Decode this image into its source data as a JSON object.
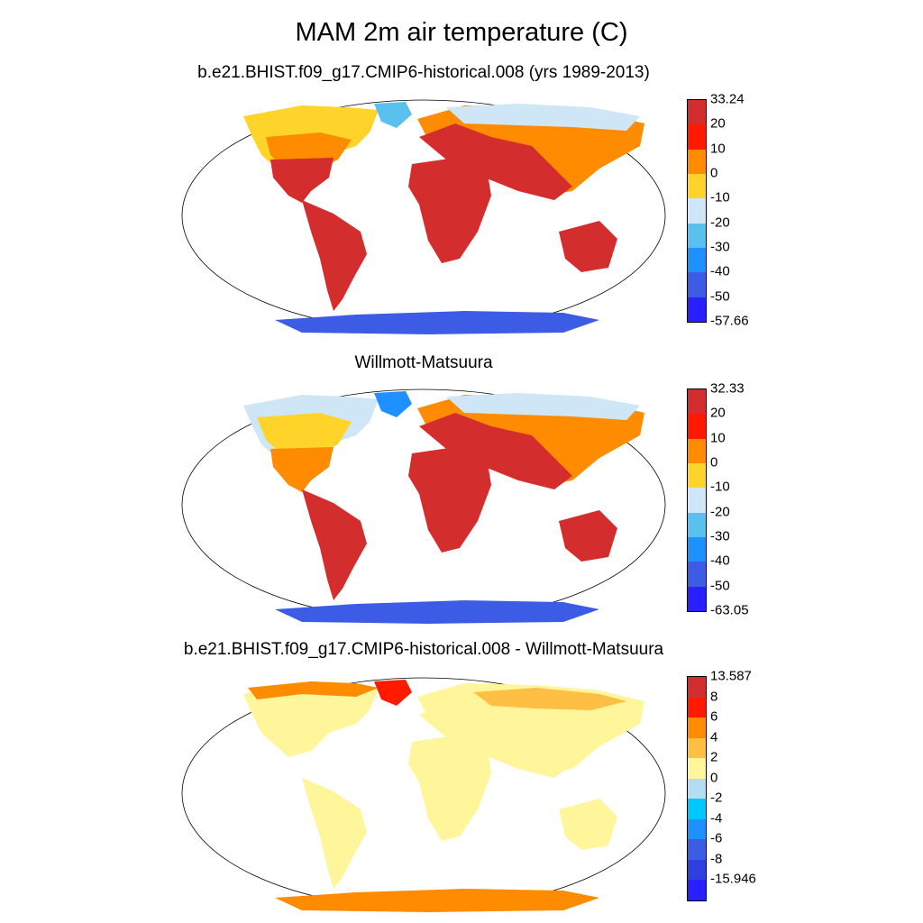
{
  "title": "MAM 2m air temperature (C)",
  "panels": [
    {
      "subtitle": "b.e21.BHIST.f09_g17.CMIP6-historical.008 (yrs 1989-2013)",
      "colorbar": {
        "labels": [
          "33.24",
          "20",
          "10",
          "0",
          "-10",
          "-20",
          "-30",
          "-40",
          "-50",
          "-57.66"
        ],
        "colors": [
          "#d42d2d",
          "#ff1a00",
          "#ff8c00",
          "#ffd42a",
          "#cfe6f6",
          "#5ac0ee",
          "#1e90ff",
          "#3d5ce6",
          "#2a1fff"
        ]
      }
    },
    {
      "subtitle": "Willmott-Matsuura",
      "colorbar": {
        "labels": [
          "32.33",
          "20",
          "10",
          "0",
          "-10",
          "-20",
          "-30",
          "-40",
          "-50",
          "-63.05"
        ],
        "colors": [
          "#d42d2d",
          "#ff1a00",
          "#ff8c00",
          "#ffd42a",
          "#cfe6f6",
          "#5ac0ee",
          "#1e90ff",
          "#3d5ce6",
          "#2a1fff"
        ]
      }
    },
    {
      "subtitle": "b.e21.BHIST.f09_g17.CMIP6-historical.008 - Willmott-Matsuura",
      "colorbar": {
        "labels": [
          "13.587",
          "8",
          "6",
          "4",
          "2",
          "0",
          "-2",
          "-4",
          "-6",
          "-8",
          "-15.946"
        ],
        "colors": [
          "#d42d2d",
          "#ff1a00",
          "#ff8c00",
          "#ffbe44",
          "#fff59a",
          "#b4dcf2",
          "#00c8ff",
          "#1e90ff",
          "#3d5ce6",
          "#2f3fe0",
          "#2a1fff"
        ]
      }
    }
  ]
}
